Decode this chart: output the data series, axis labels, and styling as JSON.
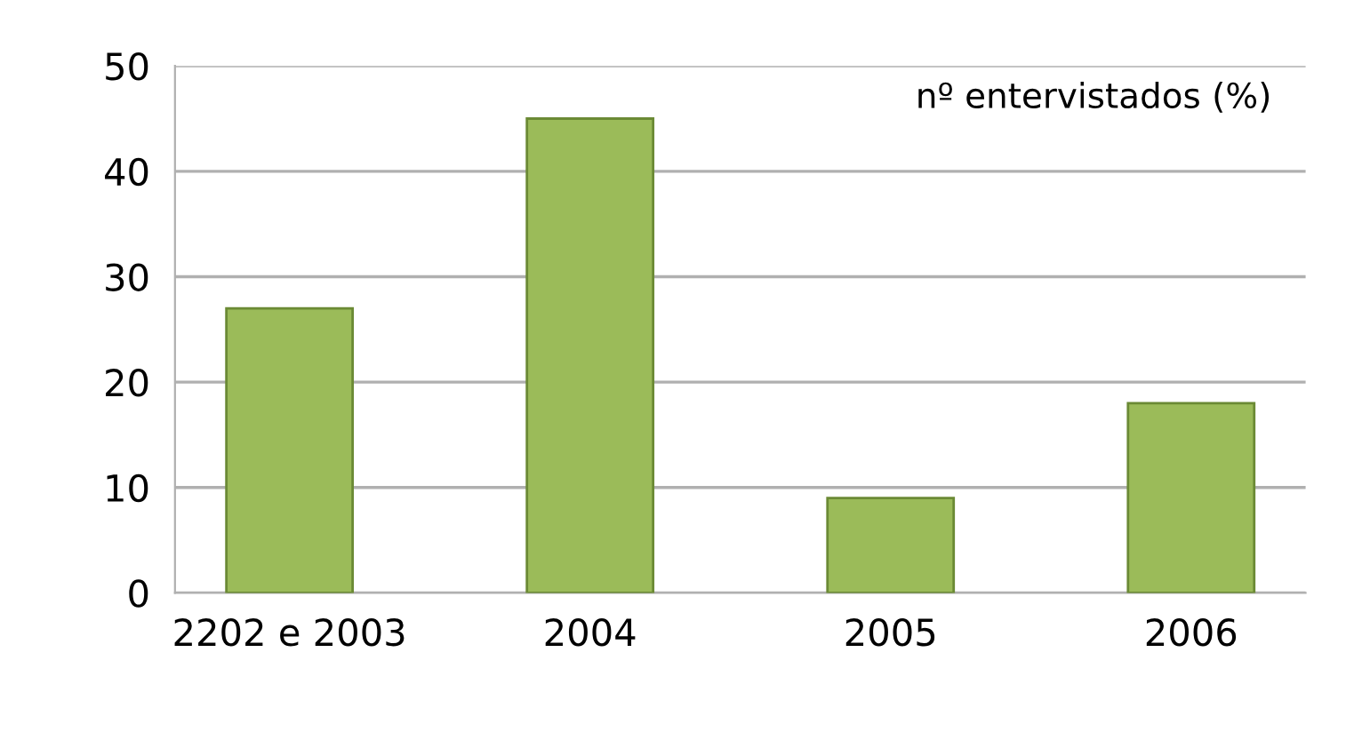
{
  "chart_data": {
    "type": "bar",
    "title": "nº entervistados (%)",
    "categories": [
      "2202 e 2003",
      "2004",
      "2005",
      "2006"
    ],
    "values": [
      27,
      45,
      9,
      18
    ],
    "color": "#9bbb59",
    "ylim": [
      0,
      50
    ],
    "yticks": [
      0,
      10,
      20,
      30,
      40,
      50
    ],
    "grid": "y"
  }
}
